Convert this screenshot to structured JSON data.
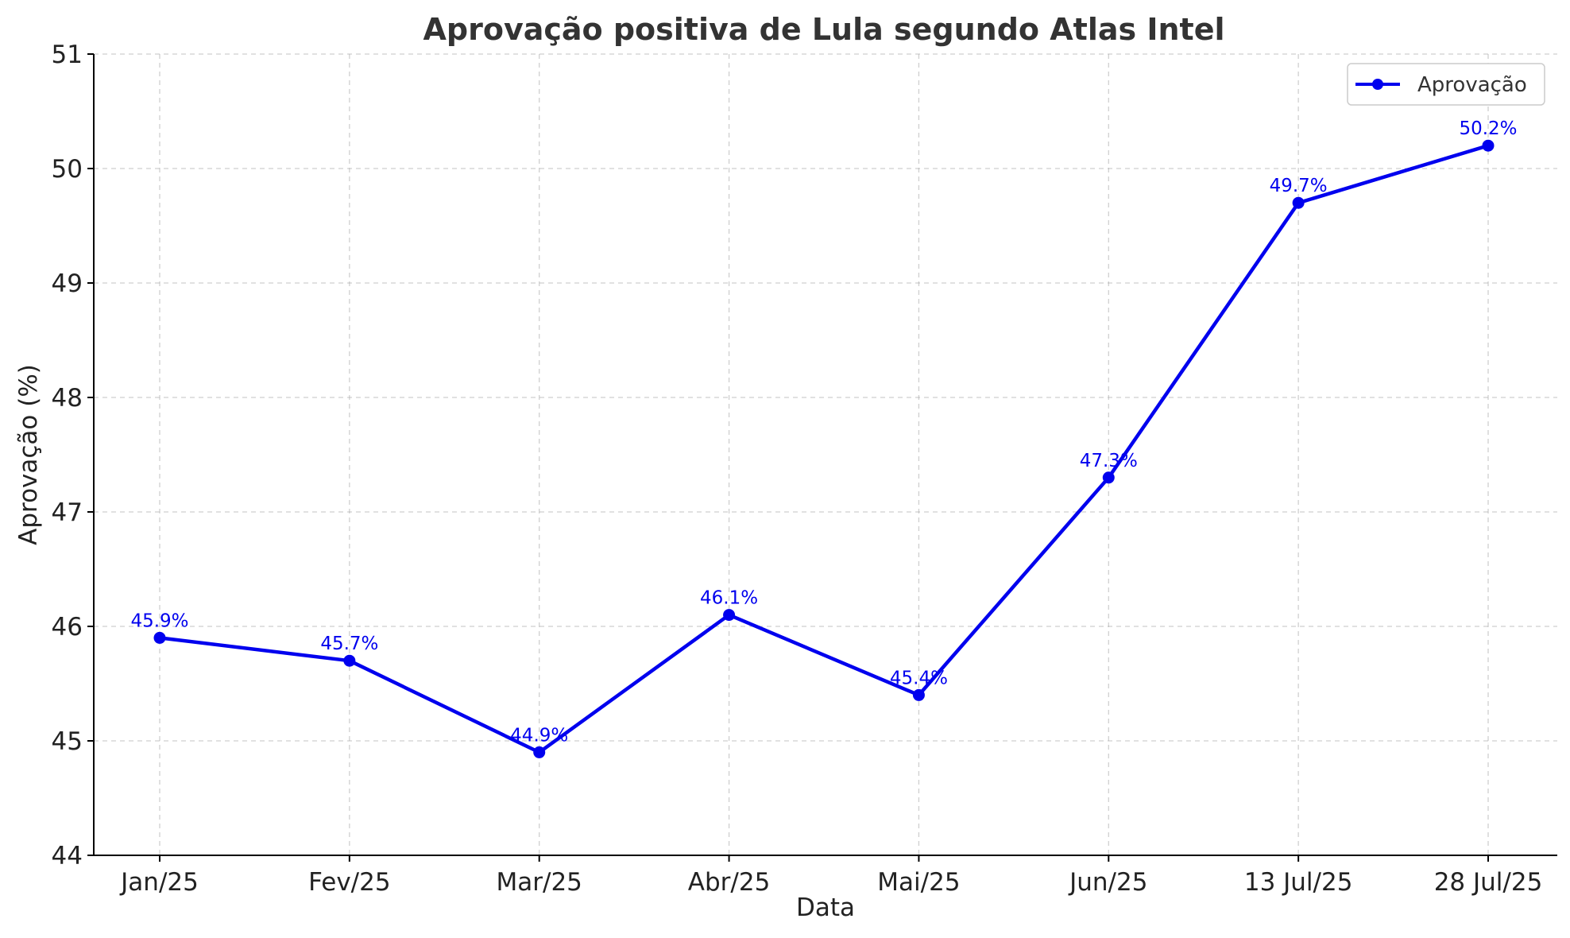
{
  "chart_data": {
    "type": "line",
    "title": "Aprovação positiva de Lula segundo Atlas Intel",
    "xlabel": "Data",
    "ylabel": "Aprovação (%)",
    "categories": [
      "Jan/25",
      "Fev/25",
      "Mar/25",
      "Abr/25",
      "Mai/25",
      "Jun/25",
      "13 Jul/25",
      "28 Jul/25"
    ],
    "series": [
      {
        "name": "Aprovação",
        "values": [
          45.9,
          45.7,
          44.9,
          46.1,
          45.4,
          47.3,
          49.7,
          50.2
        ],
        "data_labels": [
          "45.9%",
          "45.7%",
          "44.9%",
          "46.1%",
          "45.4%",
          "47.3%",
          "49.7%",
          "50.2%"
        ],
        "color": "#0000ee"
      }
    ],
    "ylim": [
      44,
      51
    ],
    "yticks": [
      44,
      45,
      46,
      47,
      48,
      49,
      50,
      51
    ],
    "grid": true,
    "legend_position": "top-right"
  }
}
